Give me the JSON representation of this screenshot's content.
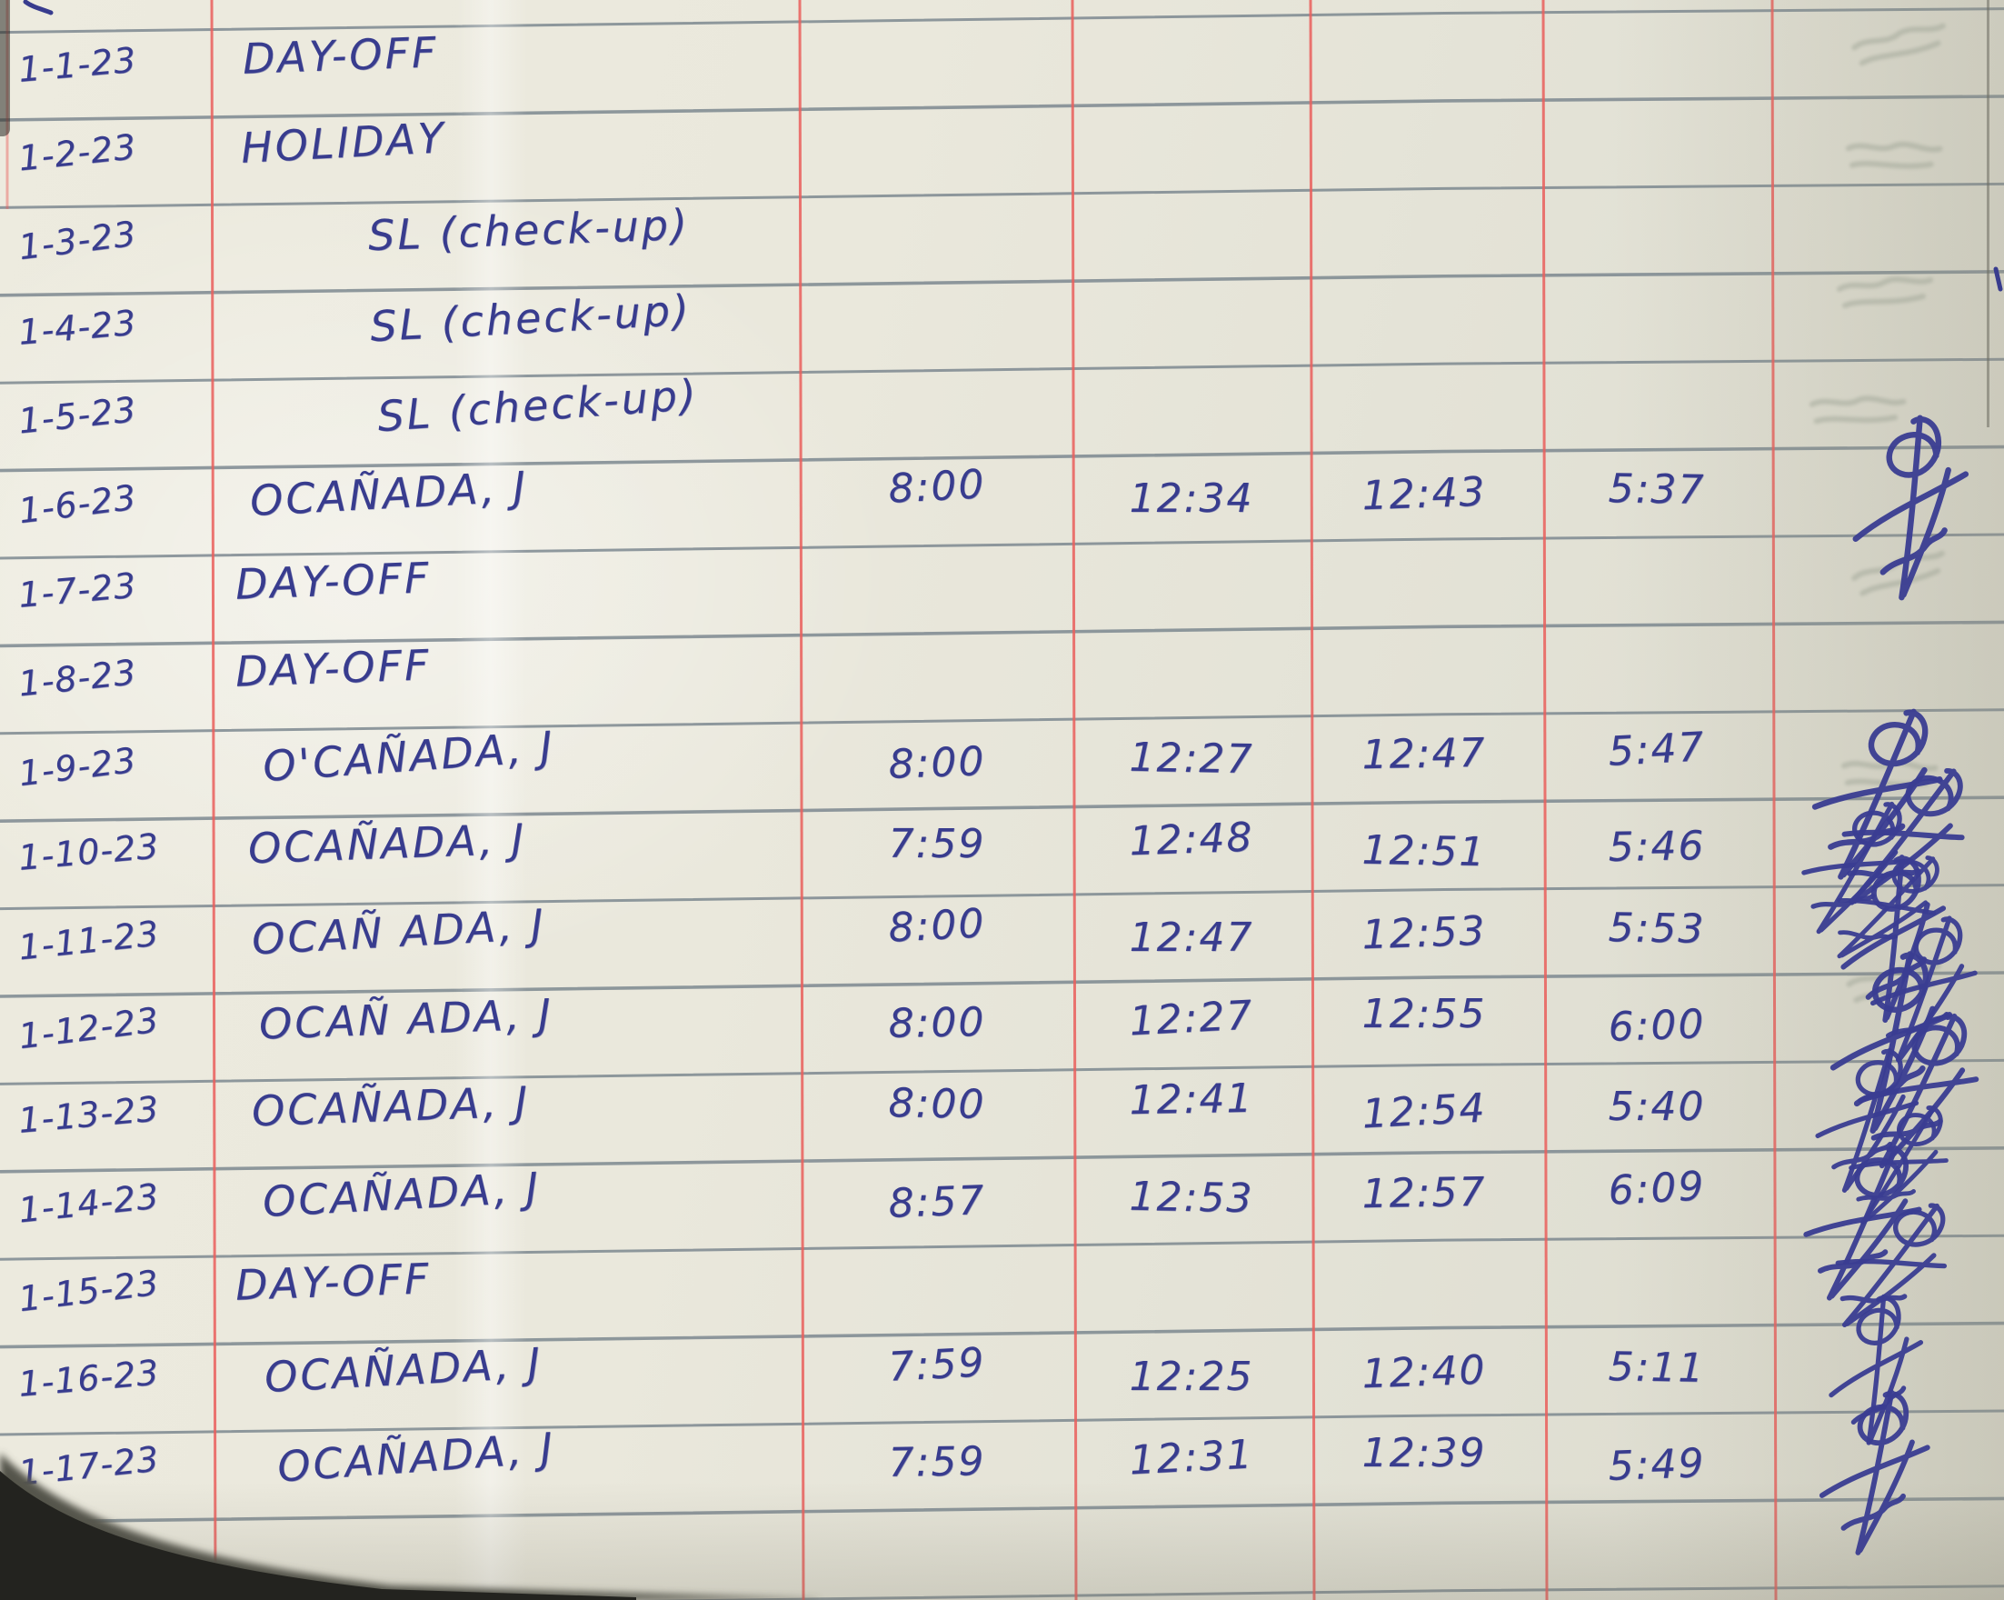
{
  "document": {
    "kind": "handwritten-attendance-logbook-page",
    "colors": {
      "paper": "#e9e7db",
      "rule_line": "#76828b",
      "margin_line": "#ea5f5c",
      "ink": "#383c8e"
    },
    "signature_mark": "initials-scribble"
  },
  "logbook": {
    "rows": [
      {
        "date": "1-1-23",
        "entry": "DAY-OFF",
        "time_in": "",
        "break_out": "",
        "break_in": "",
        "time_out": "",
        "signed": false
      },
      {
        "date": "1-2-23",
        "entry": "HOLIDAY",
        "time_in": "",
        "break_out": "",
        "break_in": "",
        "time_out": "",
        "signed": false
      },
      {
        "date": "1-3-23",
        "entry": "SL (check-up)",
        "time_in": "",
        "break_out": "",
        "break_in": "",
        "time_out": "",
        "signed": false
      },
      {
        "date": "1-4-23",
        "entry": "SL (check-up)",
        "time_in": "",
        "break_out": "",
        "break_in": "",
        "time_out": "",
        "signed": false
      },
      {
        "date": "1-5-23",
        "entry": "SL (check-up)",
        "time_in": "",
        "break_out": "",
        "break_in": "",
        "time_out": "",
        "signed": false
      },
      {
        "date": "1-6-23",
        "entry": "OCAÑADA, J",
        "time_in": "8:00",
        "break_out": "12:34",
        "break_in": "12:43",
        "time_out": "5:37",
        "signed": true
      },
      {
        "date": "1-7-23",
        "entry": "DAY-OFF",
        "time_in": "",
        "break_out": "",
        "break_in": "",
        "time_out": "",
        "signed": false
      },
      {
        "date": "1-8-23",
        "entry": "DAY-OFF",
        "time_in": "",
        "break_out": "",
        "break_in": "",
        "time_out": "",
        "signed": false
      },
      {
        "date": "1-9-23",
        "entry": "O'CAÑADA, J",
        "time_in": "8:00",
        "break_out": "12:27",
        "break_in": "12:47",
        "time_out": "5:47",
        "signed": true
      },
      {
        "date": "1-10-23",
        "entry": "OCAÑADA, J",
        "time_in": "7:59",
        "break_out": "12:48",
        "break_in": "12:51",
        "time_out": "5:46",
        "signed": true
      },
      {
        "date": "1-11-23",
        "entry": "OCAÑ ADA, J",
        "time_in": "8:00",
        "break_out": "12:47",
        "break_in": "12:53",
        "time_out": "5:53",
        "signed": true
      },
      {
        "date": "1-12-23",
        "entry": "OCAÑ ADA, J",
        "time_in": "8:00",
        "break_out": "12:27",
        "break_in": "12:55",
        "time_out": "6:00",
        "signed": true
      },
      {
        "date": "1-13-23",
        "entry": "OCAÑADA, J",
        "time_in": "8:00",
        "break_out": "12:41",
        "break_in": "12:54",
        "time_out": "5:40",
        "signed": true
      },
      {
        "date": "1-14-23",
        "entry": "OCAÑADA, J",
        "time_in": "8:57",
        "break_out": "12:53",
        "break_in": "12:57",
        "time_out": "6:09",
        "signed": true
      },
      {
        "date": "1-15-23",
        "entry": "DAY-OFF",
        "time_in": "",
        "break_out": "",
        "break_in": "",
        "time_out": "",
        "signed": false
      },
      {
        "date": "1-16-23",
        "entry": "OCAÑADA, J",
        "time_in": "7:59",
        "break_out": "12:25",
        "break_in": "12:40",
        "time_out": "5:11",
        "signed": true
      },
      {
        "date": "1-17-23",
        "entry": "OCAÑADA, J",
        "time_in": "7:59",
        "break_out": "12:31",
        "break_in": "12:39",
        "time_out": "5:49",
        "signed": true
      }
    ]
  }
}
